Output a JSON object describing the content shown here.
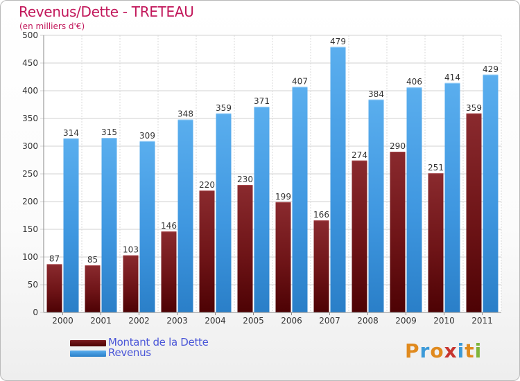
{
  "header": {
    "title": "Revenus/Dette - TRETEAU",
    "subtitle": "(en milliers d'€)"
  },
  "legend": {
    "items": [
      {
        "label": "Montant de la Dette",
        "color": "#6b0d12"
      },
      {
        "label": "Revenus",
        "color": "#3f94dd"
      }
    ]
  },
  "logo": {
    "letters": [
      "P",
      "r",
      "o",
      "x",
      "i",
      "t",
      "i"
    ],
    "colors": [
      "#e08a1e",
      "#3c9ad8",
      "#e08a1e",
      "#c7352f",
      "#3c9ad8",
      "#e08a1e",
      "#7fb53a"
    ]
  },
  "chart_data": {
    "type": "bar",
    "title": "Revenus/Dette - TRETEAU",
    "ylabel": "(en milliers d'€)",
    "xlabel": "",
    "categories": [
      "2000",
      "2001",
      "2002",
      "2003",
      "2004",
      "2005",
      "2006",
      "2007",
      "2008",
      "2009",
      "2010",
      "2011"
    ],
    "series": [
      {
        "name": "Montant de la Dette",
        "color": "#6b0d12",
        "values": [
          87,
          85,
          103,
          146,
          220,
          230,
          199,
          166,
          274,
          290,
          251,
          359
        ]
      },
      {
        "name": "Revenus",
        "color": "#3f94dd",
        "values": [
          314,
          315,
          309,
          348,
          359,
          371,
          407,
          479,
          384,
          406,
          414,
          429
        ]
      }
    ],
    "ylim": [
      0,
      500
    ],
    "yticks": [
      0,
      50,
      100,
      150,
      200,
      250,
      300,
      350,
      400,
      450,
      500
    ],
    "grid": true,
    "legend": "bottom-left"
  }
}
